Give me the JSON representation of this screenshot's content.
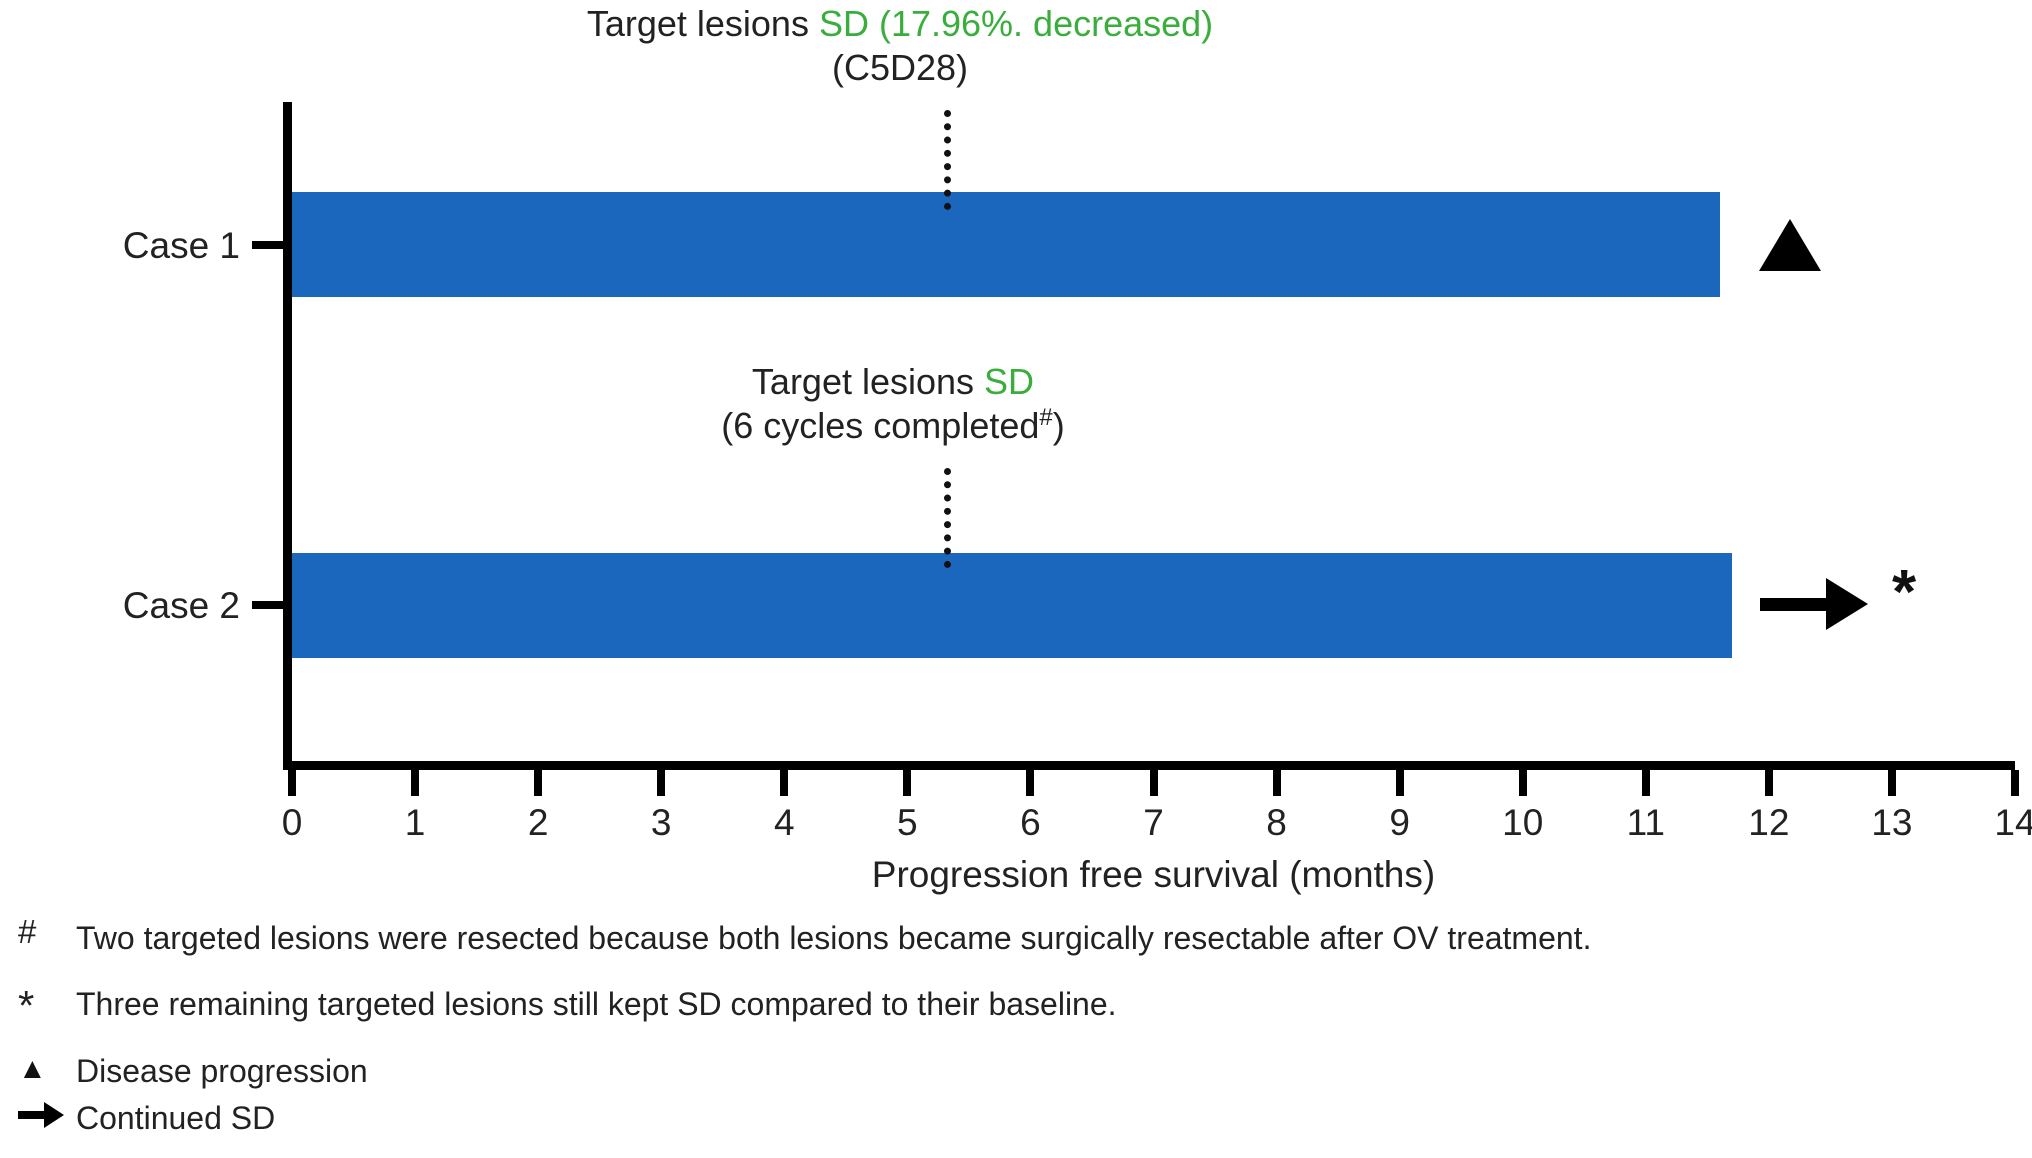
{
  "colors": {
    "bar_blue": "#1B67BD",
    "annotation_green": "#3AAE3C",
    "axis_black": "#000000"
  },
  "annotations": {
    "case1": {
      "line1_black": "Target lesions ",
      "line1_green": "SD (17.96%. decreased)",
      "line2": "(C5D28)"
    },
    "case2": {
      "line1_black": "Target lesions ",
      "line1_green": "SD",
      "line2_prefix": "(6 cycles completed",
      "line2_sup": "#",
      "line2_suffix": ")"
    }
  },
  "chart_data": {
    "type": "bar",
    "orientation": "horizontal",
    "categories": [
      "Case 1",
      "Case 2"
    ],
    "values": [
      11.6,
      11.7
    ],
    "xlabel": "Progression free survival (months)",
    "xlim": [
      0,
      14
    ],
    "x_ticks": [
      0,
      1,
      2,
      3,
      4,
      5,
      6,
      7,
      8,
      9,
      10,
      11,
      12,
      13,
      14
    ],
    "dashed_line_x": 5.3,
    "grid": false,
    "bar_color": "#1B67BD",
    "markers": [
      {
        "case": "Case 1",
        "symbol": "triangle",
        "meaning": "Disease progression"
      },
      {
        "case": "Case 2",
        "symbol": "arrow",
        "meaning": "Continued SD",
        "suffix": "*"
      }
    ]
  },
  "footnotes": [
    {
      "symbol": "#",
      "text": "Two targeted lesions were resected because both lesions became surgically resectable after OV treatment."
    },
    {
      "symbol": "*",
      "text": "Three remaining targeted lesions still kept SD compared to their baseline."
    },
    {
      "symbol": "▲",
      "text": "Disease progression"
    },
    {
      "symbol": "→",
      "text": "Continued SD"
    }
  ]
}
